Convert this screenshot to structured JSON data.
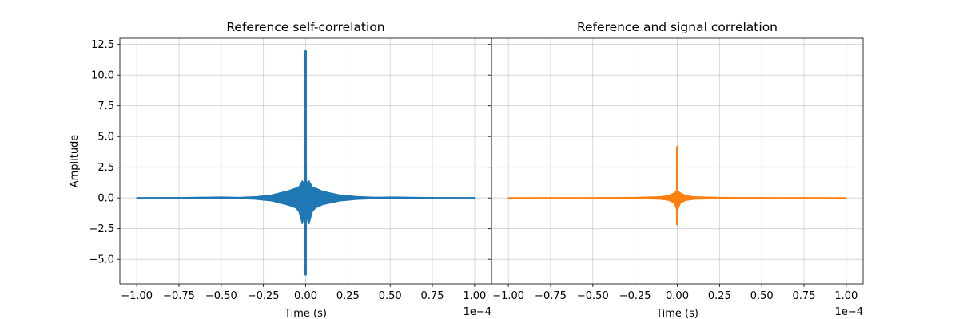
{
  "chart_data": [
    {
      "type": "line",
      "title": "Reference self-correlation",
      "xlabel": "Time (s)",
      "ylabel": "Amplitude",
      "x_offset_text": "1e−4",
      "xlim": [
        -1.1,
        1.1
      ],
      "ylim": [
        -7.0,
        13.0
      ],
      "x_ticks": [
        -1.0,
        -0.75,
        -0.5,
        -0.25,
        0.0,
        0.25,
        0.5,
        0.75,
        1.0
      ],
      "x_tick_labels": [
        "−1.00",
        "−0.75",
        "−0.50",
        "−0.25",
        "0.00",
        "0.25",
        "0.50",
        "0.75",
        "1.00"
      ],
      "y_ticks": [
        -5.0,
        -2.5,
        0.0,
        2.5,
        5.0,
        7.5,
        10.0,
        12.5
      ],
      "y_tick_labels": [
        "−5.0",
        "−2.5",
        "0.0",
        "2.5",
        "5.0",
        "7.5",
        "10.0",
        "12.5"
      ],
      "grid": true,
      "series": [
        {
          "color": "#1f77b4",
          "x": [
            -1.0,
            -0.75,
            -0.5,
            -0.45,
            -0.4,
            -0.3,
            -0.2,
            -0.1,
            -0.06,
            -0.04,
            -0.02,
            -0.01,
            -0.005,
            0.0,
            0.005,
            0.01,
            0.02,
            0.04,
            0.06,
            0.1,
            0.2,
            0.3,
            0.4,
            0.45,
            0.5,
            0.75,
            1.0
          ],
          "y_max": [
            0.02,
            0.03,
            0.08,
            0.06,
            0.05,
            0.1,
            0.25,
            0.6,
            0.8,
            0.9,
            1.4,
            1.2,
            1.4,
            12.0,
            1.4,
            1.2,
            1.4,
            0.9,
            0.8,
            0.55,
            0.25,
            0.12,
            0.06,
            0.06,
            0.08,
            0.03,
            0.02
          ],
          "y_min": [
            -0.02,
            -0.03,
            -0.08,
            -0.06,
            -0.05,
            -0.1,
            -0.25,
            -0.6,
            -0.8,
            -1.1,
            -2.1,
            -1.6,
            -2.0,
            -6.3,
            -2.0,
            -1.6,
            -2.1,
            -1.1,
            -0.8,
            -0.55,
            -0.25,
            -0.12,
            -0.06,
            -0.06,
            -0.08,
            -0.03,
            -0.02
          ]
        }
      ]
    },
    {
      "type": "line",
      "title": "Reference and signal correlation",
      "xlabel": "Time (s)",
      "ylabel": "",
      "x_offset_text": "1e−4",
      "xlim": [
        -1.1,
        1.1
      ],
      "ylim": [
        -7.0,
        13.0
      ],
      "x_ticks": [
        -1.0,
        -0.75,
        -0.5,
        -0.25,
        0.0,
        0.25,
        0.5,
        0.75,
        1.0
      ],
      "x_tick_labels": [
        "−1.00",
        "−0.75",
        "−0.50",
        "−0.25",
        "0.00",
        "0.25",
        "0.50",
        "0.75",
        "1.00"
      ],
      "y_ticks": [
        -5.0,
        -2.5,
        0.0,
        2.5,
        5.0,
        7.5,
        10.0,
        12.5
      ],
      "y_tick_labels": [
        "",
        "",
        "",
        "",
        "",
        "",
        "",
        ""
      ],
      "grid": true,
      "series": [
        {
          "color": "#ff7f0e",
          "x": [
            -1.0,
            -0.5,
            -0.25,
            -0.1,
            -0.05,
            -0.02,
            -0.01,
            -0.004,
            0.0,
            0.004,
            0.01,
            0.02,
            0.05,
            0.1,
            0.25,
            0.5,
            1.0
          ],
          "y_max": [
            0.01,
            0.02,
            0.05,
            0.1,
            0.2,
            0.4,
            0.5,
            0.5,
            4.2,
            0.5,
            0.5,
            0.4,
            0.2,
            0.1,
            0.05,
            0.02,
            0.01
          ],
          "y_min": [
            -0.01,
            -0.02,
            -0.05,
            -0.1,
            -0.2,
            -0.4,
            -0.7,
            -1.0,
            -2.2,
            -1.0,
            -0.7,
            -0.4,
            -0.2,
            -0.1,
            -0.05,
            -0.02,
            -0.01
          ]
        }
      ]
    }
  ]
}
